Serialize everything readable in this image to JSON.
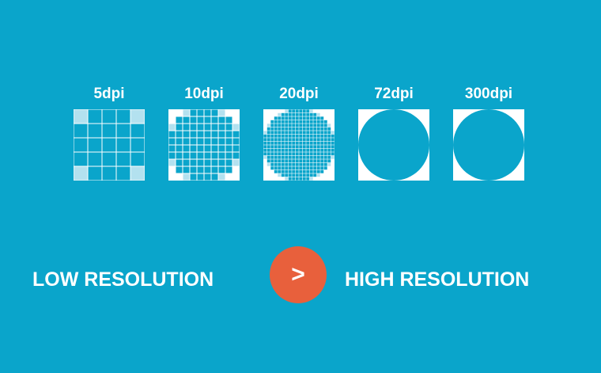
{
  "colors": {
    "background": "#0aa5cb",
    "panel": "#ffffff",
    "shape": "#0aa5cb",
    "partial": "#b3e1ef",
    "arrow_circle": "#e8603c"
  },
  "panels": [
    {
      "label": "5dpi",
      "grid": 5
    },
    {
      "label": "10dpi",
      "grid": 10
    },
    {
      "label": "20dpi",
      "grid": 20
    },
    {
      "label": "72dpi",
      "grid": 0
    },
    {
      "label": "300dpi",
      "grid": 0
    }
  ],
  "bottom": {
    "low_label": "LOW RESOLUTION",
    "arrow_symbol": ">",
    "high_label": "HIGH RESOLUTION"
  }
}
